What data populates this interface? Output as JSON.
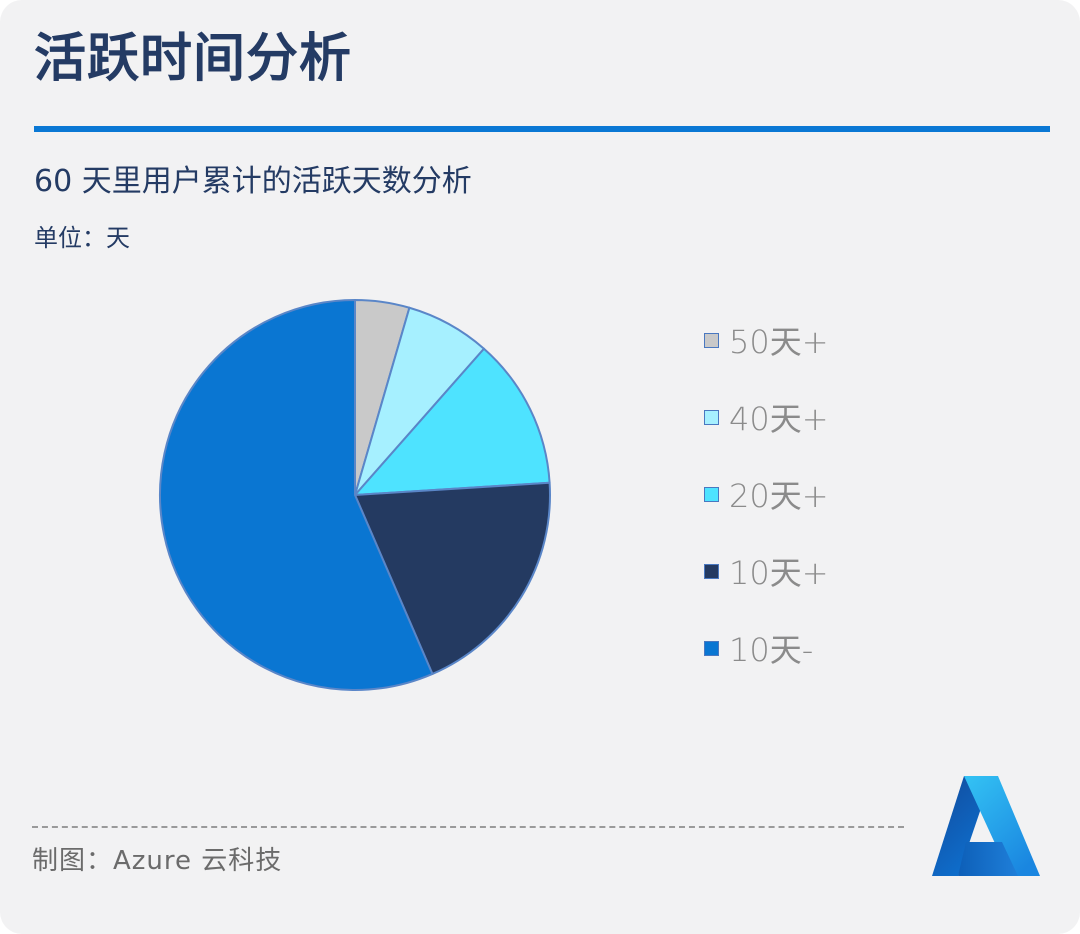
{
  "page": {
    "title": "活跃时间分析",
    "credit": "制图：Azure 云科技"
  },
  "chart_data": {
    "type": "pie",
    "title": "60 天里用户累计的活跃天数分析",
    "unit": "单位：天",
    "legend_position": "right",
    "slices": [
      {
        "label": "50天+",
        "value": 4.5,
        "color": "#c9c9c9"
      },
      {
        "label": "40天+",
        "value": 7,
        "color": "#a6f0ff"
      },
      {
        "label": "20天+",
        "value": 12.5,
        "color": "#4ee3ff"
      },
      {
        "label": "10天+",
        "value": 19.5,
        "color": "#243a61"
      },
      {
        "label": "10天-",
        "value": 56.5,
        "color": "#0a76d2"
      }
    ]
  },
  "logo": {
    "icon": "azure-logo-icon",
    "colors": [
      "#0b5fb5",
      "#2fb0f0",
      "#1479d6"
    ]
  }
}
